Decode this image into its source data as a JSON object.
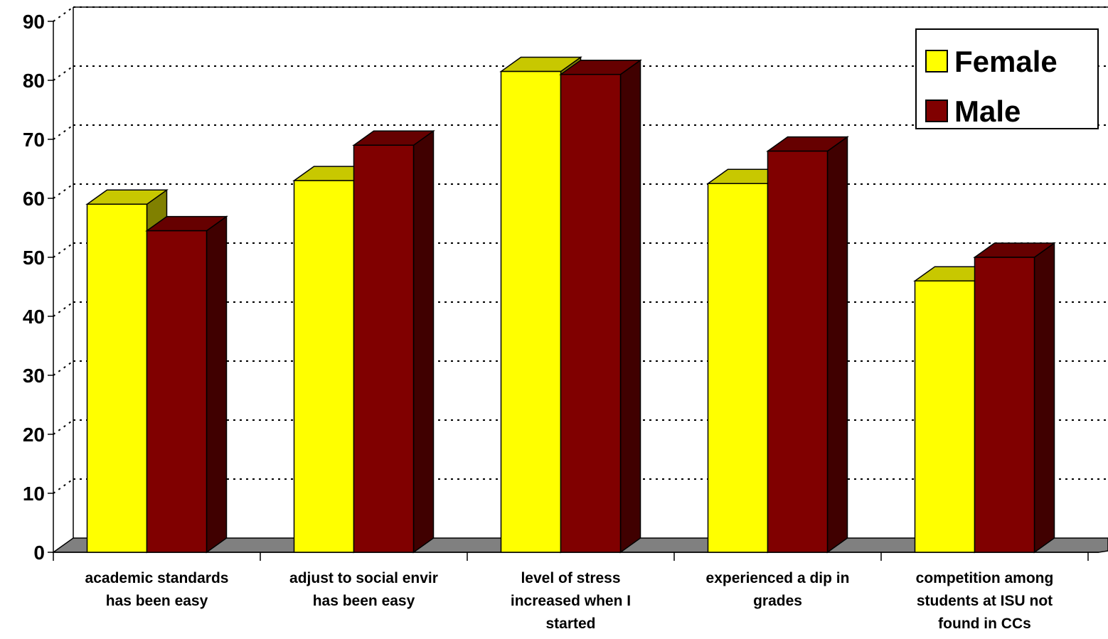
{
  "chart_data": {
    "type": "bar",
    "style": "3d-clustered-column",
    "title": "",
    "xlabel": "",
    "ylabel": "",
    "ylim": [
      0,
      90
    ],
    "yticks": [
      "0",
      "10",
      "20",
      "30",
      "40",
      "50",
      "60",
      "70",
      "80",
      "90"
    ],
    "ytick_values": [
      0,
      10,
      20,
      30,
      40,
      50,
      60,
      70,
      80,
      90
    ],
    "categories": [
      [
        "academic standards",
        "has been easy"
      ],
      [
        "adjust to social envir",
        "has been easy"
      ],
      [
        "level of stress",
        "increased when I",
        "started"
      ],
      [
        "experienced a dip in",
        "grades"
      ],
      [
        "competition among",
        "students at ISU not",
        "found in CCs"
      ]
    ],
    "series": [
      {
        "name": "Female",
        "values": [
          59,
          63,
          81.5,
          62.5,
          46
        ],
        "color": "#ffff00",
        "top_color": "#c8c800",
        "side_color": "#808000"
      },
      {
        "name": "Male",
        "values": [
          54.5,
          69,
          81,
          68,
          50
        ],
        "color": "#800000",
        "top_color": "#660000",
        "side_color": "#400000"
      }
    ],
    "grid": true,
    "gridline_style": "dotted",
    "floor_color": "#808080",
    "legend": {
      "position": "top-right",
      "entries": [
        "Female",
        "Male"
      ]
    }
  }
}
